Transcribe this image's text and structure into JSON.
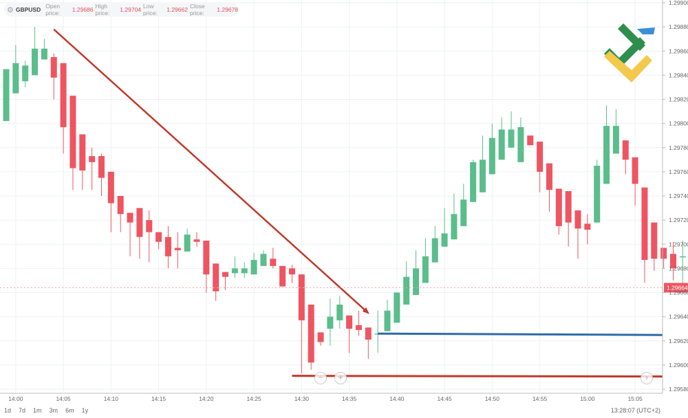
{
  "header": {
    "symbol": "GBPUSD",
    "open_label": "Open price:",
    "open_value": "1.29686",
    "high_label": "High price:",
    "high_value": "1.29704",
    "low_label": "Low price:",
    "low_value": "1.29662",
    "close_label": "Close price:",
    "close_value": "1.29678"
  },
  "footer": {
    "periods": [
      "1d",
      "7d",
      "1m",
      "3m",
      "6m",
      "1y"
    ],
    "clock": "13:28:07 (UTC+2)"
  },
  "controls": {
    "zoom_out": "−",
    "zoom_in": "+",
    "scroll_right": "›"
  },
  "colors": {
    "up": "#5bbd8b",
    "down": "#ee5561",
    "trend_arrow": "#c0392b",
    "blue_level": "#2f6aa8",
    "red_level": "#c0392b"
  },
  "chart_data": {
    "type": "candlestick",
    "symbol": "GBPUSD",
    "ylim": [
      1.2958,
      1.299
    ],
    "y_ticks": [
      "1.29900",
      "1.29880",
      "1.29860",
      "1.29840",
      "1.29820",
      "1.29800",
      "1.29780",
      "1.29760",
      "1.29740",
      "1.29720",
      "1.29700",
      "1.29680",
      "1.29660",
      "1.29640",
      "1.29620",
      "1.29600",
      "1.29580"
    ],
    "x_ticks": [
      "14:00",
      "14:05",
      "14:10",
      "14:15",
      "14:20",
      "14:25",
      "14:30",
      "14:35",
      "14:40",
      "14:45",
      "14:50",
      "14:55",
      "15:00",
      "15:05"
    ],
    "last_price": "1.29664",
    "candles": [
      {
        "time": "13:59",
        "o": 1.29802,
        "h": 1.29845,
        "l": 1.29802,
        "c": 1.29845
      },
      {
        "time": "14:00",
        "o": 1.29825,
        "h": 1.29865,
        "l": 1.29825,
        "c": 1.2985
      },
      {
        "time": "14:01",
        "o": 1.29835,
        "h": 1.29852,
        "l": 1.2983,
        "c": 1.29848
      },
      {
        "time": "14:02",
        "o": 1.2984,
        "h": 1.2988,
        "l": 1.2984,
        "c": 1.29862
      },
      {
        "time": "14:03",
        "o": 1.29853,
        "h": 1.2987,
        "l": 1.29853,
        "c": 1.29862
      },
      {
        "time": "14:04",
        "o": 1.29855,
        "h": 1.29858,
        "l": 1.2982,
        "c": 1.29838
      },
      {
        "time": "14:05",
        "o": 1.2985,
        "h": 1.2985,
        "l": 1.29775,
        "c": 1.29797
      },
      {
        "time": "14:06",
        "o": 1.29823,
        "h": 1.29823,
        "l": 1.29745,
        "c": 1.29763
      },
      {
        "time": "14:07",
        "o": 1.29791,
        "h": 1.29791,
        "l": 1.29745,
        "c": 1.29761
      },
      {
        "time": "14:08",
        "o": 1.29773,
        "h": 1.2978,
        "l": 1.29745,
        "c": 1.29768
      },
      {
        "time": "14:09",
        "o": 1.29773,
        "h": 1.29775,
        "l": 1.2974,
        "c": 1.29755
      },
      {
        "time": "14:10",
        "o": 1.2976,
        "h": 1.2976,
        "l": 1.2971,
        "c": 1.29734
      },
      {
        "time": "14:11",
        "o": 1.2974,
        "h": 1.2974,
        "l": 1.2971,
        "c": 1.29725
      },
      {
        "time": "14:12",
        "o": 1.29726,
        "h": 1.29726,
        "l": 1.2969,
        "c": 1.29718
      },
      {
        "time": "14:13",
        "o": 1.2973,
        "h": 1.2973,
        "l": 1.29688,
        "c": 1.29706
      },
      {
        "time": "14:14",
        "o": 1.2972,
        "h": 1.29728,
        "l": 1.29685,
        "c": 1.2971
      },
      {
        "time": "14:15",
        "o": 1.2971,
        "h": 1.2971,
        "l": 1.29696,
        "c": 1.29702
      },
      {
        "time": "14:16",
        "o": 1.29706,
        "h": 1.29715,
        "l": 1.2968,
        "c": 1.2969
      },
      {
        "time": "14:17",
        "o": 1.29697,
        "h": 1.2971,
        "l": 1.2968,
        "c": 1.29695
      },
      {
        "time": "14:18",
        "o": 1.29694,
        "h": 1.29713,
        "l": 1.29694,
        "c": 1.29708
      },
      {
        "time": "14:19",
        "o": 1.29704,
        "h": 1.2971,
        "l": 1.29698,
        "c": 1.29702
      },
      {
        "time": "14:20",
        "o": 1.29703,
        "h": 1.29703,
        "l": 1.2966,
        "c": 1.29675
      },
      {
        "time": "14:21",
        "o": 1.29684,
        "h": 1.29684,
        "l": 1.29653,
        "c": 1.29661
      },
      {
        "time": "14:22",
        "o": 1.29677,
        "h": 1.29677,
        "l": 1.29662,
        "c": 1.29673
      },
      {
        "time": "14:23",
        "o": 1.29676,
        "h": 1.2969,
        "l": 1.29672,
        "c": 1.2968
      },
      {
        "time": "14:24",
        "o": 1.29676,
        "h": 1.29685,
        "l": 1.29672,
        "c": 1.2968
      },
      {
        "time": "14:25",
        "o": 1.29675,
        "h": 1.29693,
        "l": 1.29675,
        "c": 1.29687
      },
      {
        "time": "14:26",
        "o": 1.29682,
        "h": 1.29695,
        "l": 1.29682,
        "c": 1.29692
      },
      {
        "time": "14:27",
        "o": 1.29688,
        "h": 1.29697,
        "l": 1.2968,
        "c": 1.29682
      },
      {
        "time": "14:28",
        "o": 1.29682,
        "h": 1.29682,
        "l": 1.29665,
        "c": 1.29665
      },
      {
        "time": "14:29",
        "o": 1.2968,
        "h": 1.29683,
        "l": 1.29668,
        "c": 1.29675
      },
      {
        "time": "14:30",
        "o": 1.29675,
        "h": 1.29675,
        "l": 1.29593,
        "c": 1.29637
      },
      {
        "time": "14:31",
        "o": 1.2965,
        "h": 1.2965,
        "l": 1.29596,
        "c": 1.29602
      },
      {
        "time": "14:32",
        "o": 1.29627,
        "h": 1.29627,
        "l": 1.29616,
        "c": 1.29619
      },
      {
        "time": "14:33",
        "o": 1.2963,
        "h": 1.29655,
        "l": 1.29616,
        "c": 1.2964
      },
      {
        "time": "14:34",
        "o": 1.29637,
        "h": 1.29657,
        "l": 1.2963,
        "c": 1.2965
      },
      {
        "time": "14:35",
        "o": 1.29641,
        "h": 1.29641,
        "l": 1.2961,
        "c": 1.2963
      },
      {
        "time": "14:36",
        "o": 1.29633,
        "h": 1.29645,
        "l": 1.29624,
        "c": 1.29629
      },
      {
        "time": "14:37",
        "o": 1.29631,
        "h": 1.29631,
        "l": 1.29605,
        "c": 1.29621
      },
      {
        "time": "14:38",
        "o": 1.29626,
        "h": 1.29645,
        "l": 1.2961,
        "c": 1.29626
      },
      {
        "time": "14:39",
        "o": 1.29628,
        "h": 1.29654,
        "l": 1.29628,
        "c": 1.29645
      },
      {
        "time": "14:40",
        "o": 1.29635,
        "h": 1.2966,
        "l": 1.29635,
        "c": 1.2966
      },
      {
        "time": "14:41",
        "o": 1.2965,
        "h": 1.29686,
        "l": 1.2965,
        "c": 1.29673
      },
      {
        "time": "14:42",
        "o": 1.29658,
        "h": 1.29695,
        "l": 1.29658,
        "c": 1.2968
      },
      {
        "time": "14:43",
        "o": 1.29668,
        "h": 1.29705,
        "l": 1.29668,
        "c": 1.2969
      },
      {
        "time": "14:44",
        "o": 1.29685,
        "h": 1.29715,
        "l": 1.29685,
        "c": 1.29705
      },
      {
        "time": "14:45",
        "o": 1.29698,
        "h": 1.2973,
        "l": 1.29698,
        "c": 1.29709
      },
      {
        "time": "14:46",
        "o": 1.29704,
        "h": 1.29742,
        "l": 1.29704,
        "c": 1.29725
      },
      {
        "time": "14:47",
        "o": 1.29715,
        "h": 1.2975,
        "l": 1.29715,
        "c": 1.29737
      },
      {
        "time": "14:48",
        "o": 1.29735,
        "h": 1.2977,
        "l": 1.29735,
        "c": 1.29768
      },
      {
        "time": "14:49",
        "o": 1.29743,
        "h": 1.2979,
        "l": 1.29743,
        "c": 1.2977
      },
      {
        "time": "14:50",
        "o": 1.29758,
        "h": 1.298,
        "l": 1.29758,
        "c": 1.29788
      },
      {
        "time": "14:51",
        "o": 1.2977,
        "h": 1.29805,
        "l": 1.2977,
        "c": 1.29795
      },
      {
        "time": "14:52",
        "o": 1.2978,
        "h": 1.2981,
        "l": 1.2978,
        "c": 1.29795
      },
      {
        "time": "14:53",
        "o": 1.29768,
        "h": 1.29805,
        "l": 1.29768,
        "c": 1.29797
      },
      {
        "time": "14:54",
        "o": 1.2979,
        "h": 1.2979,
        "l": 1.29782,
        "c": 1.29782
      },
      {
        "time": "14:55",
        "o": 1.29785,
        "h": 1.29785,
        "l": 1.29743,
        "c": 1.2976
      },
      {
        "time": "14:56",
        "o": 1.29767,
        "h": 1.29767,
        "l": 1.29727,
        "c": 1.29745
      },
      {
        "time": "14:57",
        "o": 1.29746,
        "h": 1.29746,
        "l": 1.29708,
        "c": 1.29715
      },
      {
        "time": "14:58",
        "o": 1.29744,
        "h": 1.29744,
        "l": 1.29698,
        "c": 1.29718
      },
      {
        "time": "14:59",
        "o": 1.29728,
        "h": 1.29728,
        "l": 1.29688,
        "c": 1.29713
      },
      {
        "time": "15:00",
        "o": 1.29717,
        "h": 1.29725,
        "l": 1.297,
        "c": 1.29712
      },
      {
        "time": "15:01",
        "o": 1.29718,
        "h": 1.2977,
        "l": 1.29718,
        "c": 1.29765
      },
      {
        "time": "15:02",
        "o": 1.2975,
        "h": 1.29815,
        "l": 1.2975,
        "c": 1.29798
      },
      {
        "time": "15:03",
        "o": 1.29775,
        "h": 1.29812,
        "l": 1.29775,
        "c": 1.29798
      },
      {
        "time": "15:04",
        "o": 1.29786,
        "h": 1.29786,
        "l": 1.29758,
        "c": 1.2977
      },
      {
        "time": "15:05",
        "o": 1.29772,
        "h": 1.29772,
        "l": 1.29732,
        "c": 1.2975
      },
      {
        "time": "15:06",
        "o": 1.29747,
        "h": 1.29747,
        "l": 1.29668,
        "c": 1.29687
      },
      {
        "time": "15:07",
        "o": 1.29718,
        "h": 1.29718,
        "l": 1.29678,
        "c": 1.29688
      },
      {
        "time": "15:08",
        "o": 1.29697,
        "h": 1.29697,
        "l": 1.2968,
        "c": 1.29688
      },
      {
        "time": "15:09",
        "o": 1.29692,
        "h": 1.29702,
        "l": 1.2967,
        "c": 1.2968
      },
      {
        "time": "15:10",
        "o": 1.2969,
        "h": 1.29703,
        "l": 1.29666,
        "c": 1.2969
      },
      {
        "time": "15:11",
        "o": 1.29691,
        "h": 1.29702,
        "l": 1.29666,
        "c": 1.2969
      },
      {
        "time": "15:12",
        "o": 1.29695,
        "h": 1.29702,
        "l": 1.29666,
        "c": 1.29685
      },
      {
        "time": "15:13",
        "o": 1.29686,
        "h": 1.29704,
        "l": 1.29662,
        "c": 1.29678
      },
      {
        "time": "15:14",
        "o": 1.2968,
        "h": 1.2968,
        "l": 1.29645,
        "c": 1.29664
      }
    ],
    "annotations": {
      "trend_arrow": {
        "from": {
          "time": "14:04",
          "price": 1.29878
        },
        "to": {
          "time": "14:37",
          "price": 1.29643
        }
      },
      "blue_level": {
        "price": 1.29626,
        "from_time": "14:38"
      },
      "red_level": {
        "price": 1.29591,
        "from_time": "14:29"
      }
    }
  }
}
